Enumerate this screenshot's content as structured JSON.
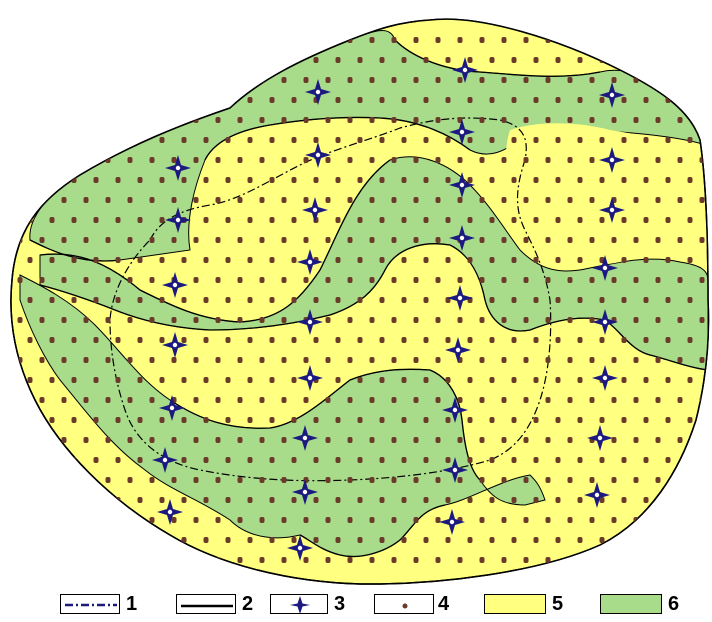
{
  "colors": {
    "zone_5_fill": "#FFFF80",
    "zone_6_fill": "#A8DB8A",
    "boundary_line": "#000000",
    "symbol_3": "#1C1A80",
    "symbol_4": "#6B3A2A"
  },
  "legend": [
    {
      "label": "1",
      "symbol": "dash-dot-boundary-line-icon"
    },
    {
      "label": "2",
      "symbol": "solid-boundary-line-icon"
    },
    {
      "label": "3",
      "symbol": "four-point-star-icon"
    },
    {
      "label": "4",
      "symbol": "small-dot-icon"
    },
    {
      "label": "5",
      "symbol": "yellow-fill-swatch"
    },
    {
      "label": "6",
      "symbol": "green-fill-swatch"
    }
  ]
}
